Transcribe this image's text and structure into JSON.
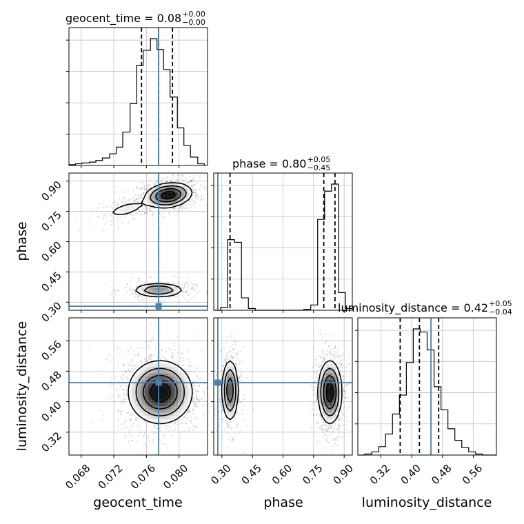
{
  "chart_data": {
    "type": "corner",
    "parameters": [
      "geocent_time",
      "phase",
      "luminosity_distance"
    ],
    "injection": {
      "geocent_time": 0.0775,
      "phase": 0.28,
      "luminosity_distance": 0.45
    },
    "colors": {
      "truth": "#4682b4",
      "hist": "#000000",
      "grid": "#c0c0c0"
    },
    "titles": [
      {
        "param": "geocent_time",
        "text": "geocent_time = 0.08",
        "upper": "+0.00",
        "lower": "−0.00"
      },
      {
        "param": "phase",
        "text": "phase = 0.80",
        "upper": "+0.05",
        "lower": "−0.45"
      },
      {
        "param": "luminosity_distance",
        "text": "luminosity_distance = 0.42",
        "upper": "+0.05",
        "lower": "−0.04"
      }
    ],
    "marginals": {
      "geocent_time": {
        "range": [
          0.0665,
          0.0835
        ],
        "ticks": [
          0.068,
          0.072,
          0.076,
          0.08
        ],
        "tick_labels": [
          "0.068",
          "0.072",
          "0.076",
          "0.080"
        ],
        "quantiles": [
          0.0754,
          0.0775,
          0.0792
        ],
        "bin_edges": [
          0.0665,
          0.0673,
          0.0681,
          0.069,
          0.0698,
          0.0706,
          0.0715,
          0.0723,
          0.0731,
          0.074,
          0.0748,
          0.0756,
          0.0765,
          0.0773,
          0.0781,
          0.0789,
          0.0798,
          0.0806,
          0.0814,
          0.0823,
          0.0831
        ],
        "counts": [
          1,
          2,
          3,
          4,
          6,
          9,
          14,
          22,
          40,
          74,
          120,
          138,
          152,
          139,
          115,
          82,
          45,
          24,
          10,
          2
        ]
      },
      "phase": {
        "range": [
          0.26,
          0.94
        ],
        "ticks": [
          0.3,
          0.45,
          0.6,
          0.75,
          0.9
        ],
        "tick_labels": [
          "0.30",
          "0.45",
          "0.60",
          "0.75",
          "0.90"
        ],
        "quantiles": [
          0.34,
          0.8,
          0.855
        ],
        "bin_edges": [
          0.26,
          0.294,
          0.328,
          0.362,
          0.396,
          0.43,
          0.464,
          0.498,
          0.532,
          0.566,
          0.6,
          0.634,
          0.668,
          0.702,
          0.736,
          0.77,
          0.804,
          0.838,
          0.872,
          0.906,
          0.94
        ],
        "counts": [
          0,
          3,
          80,
          77,
          14,
          2,
          0,
          0,
          0,
          0,
          0,
          0,
          0,
          1,
          6,
          103,
          135,
          143,
          20,
          2
        ]
      },
      "luminosity_distance": {
        "range": [
          0.26,
          0.62
        ],
        "ticks": [
          0.32,
          0.4,
          0.48,
          0.56
        ],
        "tick_labels": [
          "0.32",
          "0.40",
          "0.48",
          "0.56"
        ],
        "quantiles": [
          0.37,
          0.42,
          0.47
        ],
        "bin_edges": [
          0.26,
          0.278,
          0.296,
          0.314,
          0.332,
          0.35,
          0.368,
          0.386,
          0.404,
          0.422,
          0.44,
          0.458,
          0.476,
          0.494,
          0.512,
          0.53,
          0.548,
          0.566,
          0.584,
          0.602,
          0.62
        ],
        "counts": [
          0,
          1,
          3,
          8,
          20,
          39,
          57,
          88,
          120,
          117,
          100,
          65,
          43,
          25,
          14,
          7,
          3,
          1,
          0,
          0
        ]
      }
    },
    "joint": {
      "phase_vs_geocent_time": {
        "modes": [
          {
            "x": 0.0787,
            "y": 0.83,
            "sx": 0.0014,
            "sy": 0.03,
            "rho": 0.2,
            "weight": 0.65
          },
          {
            "x": 0.0735,
            "y": 0.76,
            "sx": 0.0015,
            "sy": 0.025,
            "rho": 0.6,
            "weight": 0.1
          },
          {
            "x": 0.0775,
            "y": 0.36,
            "sx": 0.0016,
            "sy": 0.018,
            "rho": 0.0,
            "weight": 0.25
          }
        ]
      },
      "luminosity_distance_vs_geocent_time": {
        "modes": [
          {
            "x": 0.0777,
            "y": 0.425,
            "sx": 0.0019,
            "sy": 0.04,
            "rho": 0.0,
            "weight": 1.0
          }
        ]
      },
      "luminosity_distance_vs_phase": {
        "modes": [
          {
            "x": 0.34,
            "y": 0.43,
            "sx": 0.02,
            "sy": 0.04,
            "rho": 0.0,
            "weight": 0.35
          },
          {
            "x": 0.83,
            "y": 0.425,
            "sx": 0.028,
            "sy": 0.04,
            "rho": 0.0,
            "weight": 0.65
          }
        ]
      }
    },
    "axis_labels": {
      "x": [
        "geocent_time",
        "phase",
        "luminosity_distance"
      ],
      "y": [
        "phase",
        "luminosity_distance"
      ]
    }
  }
}
